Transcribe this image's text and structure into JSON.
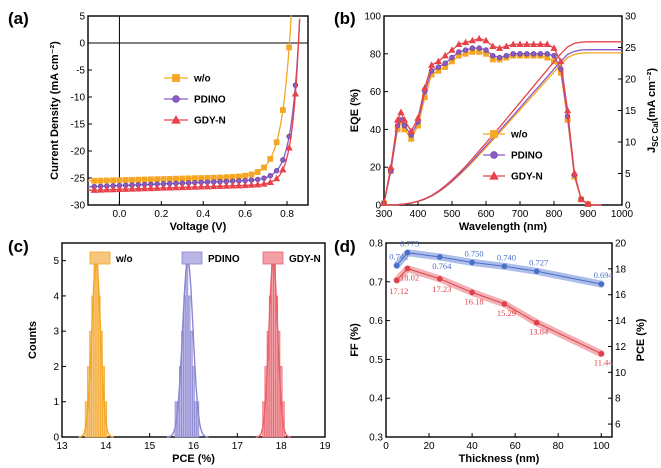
{
  "chart_data": [
    {
      "panel": "(a)",
      "type": "line",
      "xlabel": "Voltage (V)",
      "ylabel": "Current Density (mA cm⁻²)",
      "xlim": [
        -0.15,
        0.9
      ],
      "ylim": [
        -30,
        5
      ],
      "xticks": [
        "0.0",
        "0.2",
        "0.4",
        "0.6",
        "0.8"
      ],
      "xtick_values": [
        0,
        0.2,
        0.4,
        0.6,
        0.8
      ],
      "yticks": [
        "5",
        "0",
        "-5",
        "-10",
        "-15",
        "-20",
        "-25",
        "-30"
      ],
      "ytick_values": [
        5,
        0,
        -5,
        -10,
        -15,
        -20,
        -25,
        -30
      ],
      "legend_position": "center-right",
      "series": [
        {
          "name": "w/o",
          "color": "#f5a623",
          "marker": "square",
          "jsc": -25.4,
          "voc": 0.813,
          "n": 0.045,
          "slope": 1.0
        },
        {
          "name": "PDINO",
          "color": "#8a5cc4",
          "marker": "circle",
          "jsc": -26.4,
          "voc": 0.856,
          "n": 0.038,
          "slope": 1.5
        },
        {
          "name": "GDY-N",
          "color": "#e8424a",
          "marker": "triangle",
          "jsc": -27.1,
          "voc": 0.856,
          "n": 0.033,
          "slope": 1.2
        }
      ]
    },
    {
      "panel": "(b)",
      "type": "line",
      "xlabel": "Wavelength (nm)",
      "ylabel": "EQE (%)",
      "y2label_main": "J",
      "y2label_sub": "SC Cal",
      "y2label_unit": "(mA cm⁻²)",
      "xlim": [
        300,
        1000
      ],
      "ylim": [
        0,
        100
      ],
      "y2lim": [
        0,
        30
      ],
      "xticks": [
        "300",
        "400",
        "500",
        "600",
        "700",
        "800",
        "900",
        "1000"
      ],
      "xtick_values": [
        300,
        400,
        500,
        600,
        700,
        800,
        900,
        1000
      ],
      "yticks": [
        "0",
        "20",
        "40",
        "60",
        "80",
        "100"
      ],
      "ytick_values": [
        0,
        20,
        40,
        60,
        80,
        100
      ],
      "y2ticks": [
        "0",
        "5",
        "10",
        "15",
        "20",
        "25",
        "30"
      ],
      "y2tick_values": [
        0,
        5,
        10,
        15,
        20,
        25,
        30
      ],
      "legend_position": "center-right",
      "x": [
        300,
        320,
        340,
        350,
        360,
        380,
        400,
        420,
        440,
        460,
        480,
        500,
        520,
        540,
        560,
        580,
        600,
        620,
        640,
        660,
        680,
        700,
        720,
        740,
        760,
        780,
        800,
        820,
        840,
        860,
        880,
        900,
        920,
        940
      ],
      "series": [
        {
          "name": "w/o",
          "color": "#f5a623",
          "marker": "square",
          "eqe": [
            1,
            18,
            40,
            44,
            40,
            35,
            42,
            57,
            69,
            71,
            73,
            76,
            79,
            80,
            81,
            81,
            80,
            77,
            77,
            78,
            79,
            79,
            79,
            79,
            79,
            78,
            76,
            70,
            45,
            15,
            3,
            0.5,
            0,
            0
          ],
          "jsc": [
            0,
            0.01,
            0.06,
            0.1,
            0.14,
            0.3,
            0.55,
            0.9,
            1.4,
            2.05,
            2.8,
            3.7,
            4.65,
            5.7,
            6.8,
            7.95,
            9.1,
            10.3,
            11.5,
            12.7,
            13.9,
            15.1,
            16.3,
            17.5,
            18.7,
            19.9,
            21.1,
            22.3,
            23.4,
            23.9,
            24.1,
            24.15,
            24.15,
            24.15
          ]
        },
        {
          "name": "PDINO",
          "color": "#8a5cc4",
          "marker": "circle",
          "eqe": [
            1,
            18,
            42,
            45,
            42,
            37,
            44,
            60,
            71,
            73,
            75,
            78,
            81,
            82,
            83,
            83,
            82,
            79,
            78,
            79,
            80,
            80,
            80,
            80,
            80,
            80,
            79,
            72,
            47,
            16,
            3,
            0.5,
            0,
            0
          ],
          "jsc": [
            0,
            0.01,
            0.06,
            0.1,
            0.15,
            0.32,
            0.57,
            0.93,
            1.45,
            2.1,
            2.9,
            3.8,
            4.8,
            5.85,
            7.0,
            8.2,
            9.4,
            10.6,
            11.8,
            13.0,
            14.2,
            15.45,
            16.7,
            17.9,
            19.1,
            20.35,
            21.6,
            22.8,
            23.9,
            24.4,
            24.6,
            24.65,
            24.65,
            24.65
          ]
        },
        {
          "name": "GDY-N",
          "color": "#e8424a",
          "marker": "triangle",
          "eqe": [
            1,
            20,
            45,
            49,
            45,
            39,
            46,
            62,
            74,
            76,
            79,
            82,
            85,
            86,
            87,
            88,
            87,
            84,
            83,
            84,
            85,
            85,
            85,
            85,
            85,
            85,
            83,
            76,
            50,
            17,
            3,
            0.5,
            0,
            0
          ],
          "jsc": [
            0,
            0.01,
            0.07,
            0.11,
            0.16,
            0.34,
            0.6,
            0.98,
            1.52,
            2.2,
            3.05,
            4.0,
            5.05,
            6.15,
            7.35,
            8.6,
            9.85,
            11.1,
            12.35,
            13.65,
            14.95,
            16.25,
            17.55,
            18.85,
            20.15,
            21.45,
            22.75,
            24.0,
            25.1,
            25.65,
            25.85,
            25.9,
            25.9,
            25.9
          ]
        }
      ]
    },
    {
      "panel": "(c)",
      "type": "bar",
      "xlabel": "PCE (%)",
      "ylabel": "Counts",
      "xlim": [
        13,
        19
      ],
      "ylim": [
        0,
        5.5
      ],
      "xticks": [
        "13",
        "14",
        "15",
        "16",
        "17",
        "18",
        "19"
      ],
      "xtick_values": [
        13,
        14,
        15,
        16,
        17,
        18,
        19
      ],
      "yticks": [
        "0",
        "1",
        "2",
        "3",
        "4",
        "5"
      ],
      "ytick_values": [
        0,
        1,
        2,
        3,
        4,
        5
      ],
      "legend_position": "top",
      "series": [
        {
          "name": "w/o",
          "color": "#f5a623",
          "fill": "#f8c77e",
          "mean": 13.78,
          "sigma": 0.1,
          "bins": [
            13.55,
            13.6,
            13.65,
            13.7,
            13.75,
            13.8,
            13.85,
            13.9,
            13.95,
            14.0
          ],
          "counts": [
            1,
            2,
            3,
            4,
            5,
            5,
            4,
            3,
            2,
            1
          ]
        },
        {
          "name": "PDINO",
          "color": "#8a86d0",
          "fill": "#b9b6e6",
          "mean": 15.87,
          "sigma": 0.12,
          "bins": [
            15.6,
            15.65,
            15.7,
            15.75,
            15.8,
            15.85,
            15.9,
            15.95,
            16.0,
            16.05,
            16.1
          ],
          "counts": [
            1,
            1,
            2,
            3,
            4,
            5,
            4,
            3,
            2,
            1,
            1
          ]
        },
        {
          "name": "GDY-N",
          "color": "#e8606a",
          "fill": "#f2a0a6",
          "mean": 17.82,
          "sigma": 0.1,
          "bins": [
            17.6,
            17.65,
            17.7,
            17.75,
            17.8,
            17.85,
            17.9,
            17.95,
            18.0,
            18.05
          ],
          "counts": [
            1,
            2,
            3,
            4,
            5,
            5,
            4,
            3,
            2,
            1
          ]
        }
      ]
    },
    {
      "panel": "(d)",
      "type": "line",
      "xlabel": "Thickness (nm)",
      "ylabel": "FF (%)",
      "y2label": "PCE (%)",
      "xlim": [
        0,
        105
      ],
      "ylim": [
        0.3,
        0.8
      ],
      "y2lim": [
        5,
        20
      ],
      "xticks": [
        "0",
        "20",
        "40",
        "60",
        "80",
        "100"
      ],
      "xtick_values": [
        0,
        20,
        40,
        60,
        80,
        100
      ],
      "yticks": [
        "0.3",
        "0.4",
        "0.5",
        "0.6",
        "0.7",
        "0.8"
      ],
      "ytick_values": [
        0.3,
        0.4,
        0.5,
        0.6,
        0.7,
        0.8
      ],
      "y2ticks": [
        "6",
        "8",
        "10",
        "12",
        "14",
        "16",
        "18",
        "20"
      ],
      "y2tick_values": [
        6,
        8,
        10,
        12,
        14,
        16,
        18,
        20
      ],
      "series": [
        {
          "name": "FF",
          "axis": "left",
          "color": "#4a6fc7",
          "band": "#9fb2e6",
          "x": [
            5,
            10,
            25,
            40,
            55,
            70,
            100
          ],
          "y": [
            0.742,
            0.775,
            0.764,
            0.75,
            0.74,
            0.727,
            0.694
          ],
          "labels": [
            "0.742",
            "0.775",
            "0.764",
            "0.750",
            "0.740",
            "0.727",
            "0.694"
          ]
        },
        {
          "name": "PCE",
          "axis": "right",
          "color": "#e0404a",
          "band": "#f0a3a7",
          "x": [
            5,
            10,
            25,
            40,
            55,
            70,
            100
          ],
          "y": [
            17.12,
            18.02,
            17.23,
            16.18,
            15.29,
            13.84,
            11.44
          ],
          "labels": [
            "17.12",
            "18.02",
            "17.23",
            "16.18",
            "15.29",
            "13.84",
            "11.44"
          ]
        }
      ]
    }
  ]
}
